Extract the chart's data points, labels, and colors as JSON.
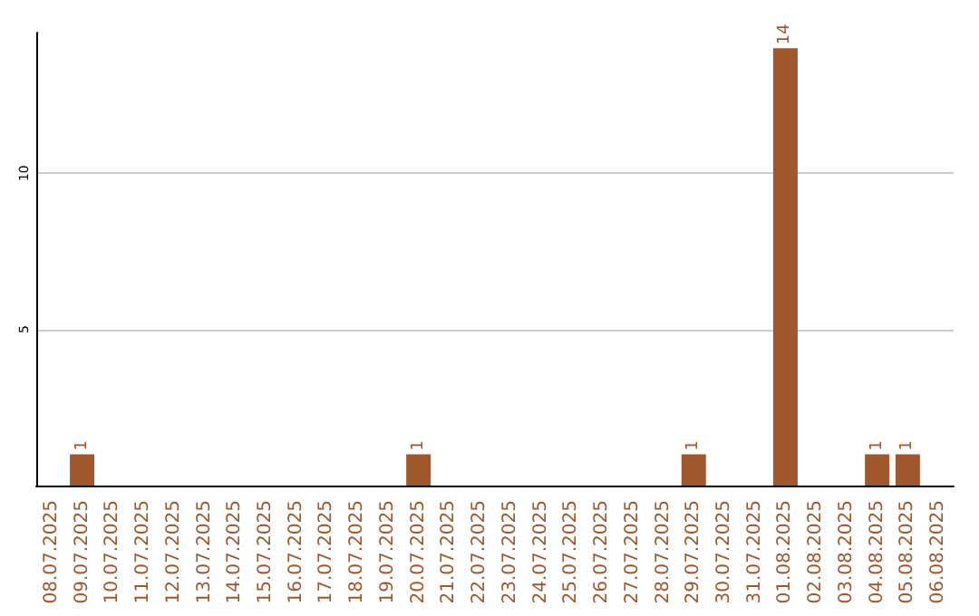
{
  "chart_data": {
    "type": "bar",
    "categories": [
      "08.07.2025",
      "09.07.2025",
      "10.07.2025",
      "11.07.2025",
      "12.07.2025",
      "13.07.2025",
      "14.07.2025",
      "15.07.2025",
      "16.07.2025",
      "17.07.2025",
      "18.07.2025",
      "19.07.2025",
      "20.07.2025",
      "21.07.2025",
      "22.07.2025",
      "23.07.2025",
      "24.07.2025",
      "25.07.2025",
      "26.07.2025",
      "27.07.2025",
      "28.07.2025",
      "29.07.2025",
      "30.07.2025",
      "31.07.2025",
      "01.08.2025",
      "02.08.2025",
      "03.08.2025",
      "04.08.2025",
      "05.08.2025",
      "06.08.2025"
    ],
    "values": [
      0,
      1,
      0,
      0,
      0,
      0,
      0,
      0,
      0,
      0,
      0,
      0,
      1,
      0,
      0,
      0,
      0,
      0,
      0,
      0,
      0,
      1,
      0,
      0,
      14,
      0,
      0,
      1,
      1,
      0
    ],
    "value_labels": [
      null,
      "1",
      null,
      null,
      null,
      null,
      null,
      null,
      null,
      null,
      null,
      null,
      "1",
      null,
      null,
      null,
      null,
      null,
      null,
      null,
      null,
      "1",
      null,
      null,
      "14",
      null,
      null,
      "1",
      "1",
      null
    ],
    "color": "#a0572b",
    "ylim": [
      0,
      14.5
    ],
    "yticks": [
      5,
      10
    ],
    "grid": "y"
  }
}
